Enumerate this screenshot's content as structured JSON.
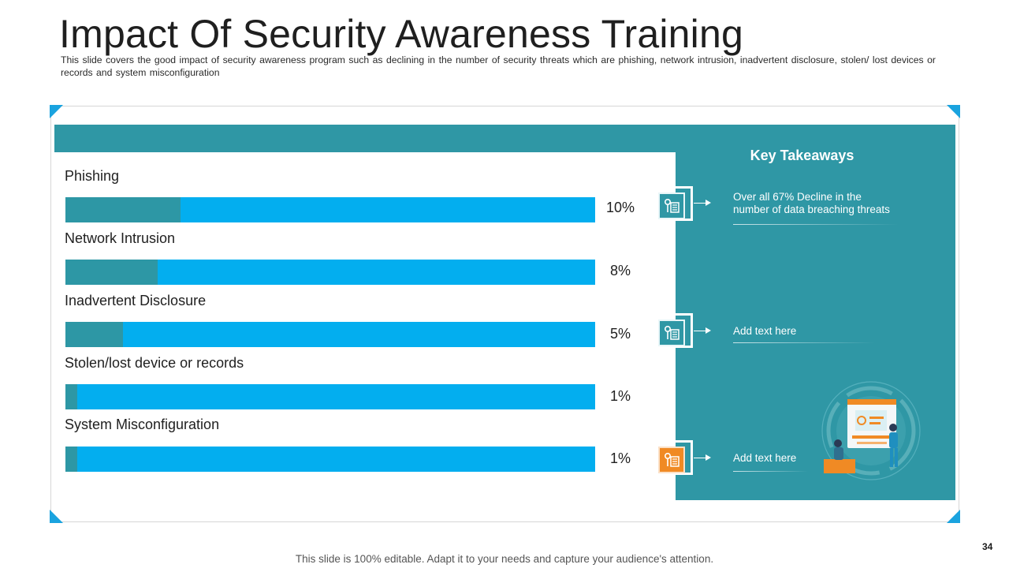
{
  "slide": {
    "title": "Impact Of Security Awareness Training",
    "subtitle": "This slide covers the good impact of security awareness program  such as declining in the number of security threats which are phishing, network intrusion, inadvertent  disclosure, stolen/ lost devices  or records and system misconfiguration",
    "footer": "This slide is 100% editable. Adapt it to your needs and capture your audience's attention.",
    "page_number": "34"
  },
  "colors": {
    "teal": "#2f97a5",
    "bar_blue": "#03aeef",
    "accent_orange": "#f08a24",
    "corner_blue": "#1aa3df"
  },
  "chart_data": {
    "type": "bar",
    "orientation": "horizontal",
    "categories": [
      "Phishing",
      "Network Intrusion",
      "Inadvertent Disclosure",
      "Stolen/lost device or records",
      "System Misconfiguration"
    ],
    "values": [
      10,
      8,
      5,
      1,
      1
    ],
    "value_labels": [
      "10%",
      "8%",
      "5%",
      "1%",
      "1%"
    ],
    "unit": "%",
    "xlim": [
      0,
      46
    ],
    "title": "",
    "xlabel": "",
    "ylabel": ""
  },
  "takeaways": {
    "title": "Key Takeaways",
    "items": [
      {
        "icon": "server-chart-icon",
        "variant": "teal",
        "text": "Over all 67% Decline in the number of data breaching threats",
        "line1": "Over all 67% Decline in the",
        "line2": "number of data breaching threats"
      },
      {
        "icon": "server-chart-icon",
        "variant": "teal",
        "text": "Add text here"
      },
      {
        "icon": "server-chart-icon",
        "variant": "orange",
        "text": "Add text here"
      }
    ]
  }
}
